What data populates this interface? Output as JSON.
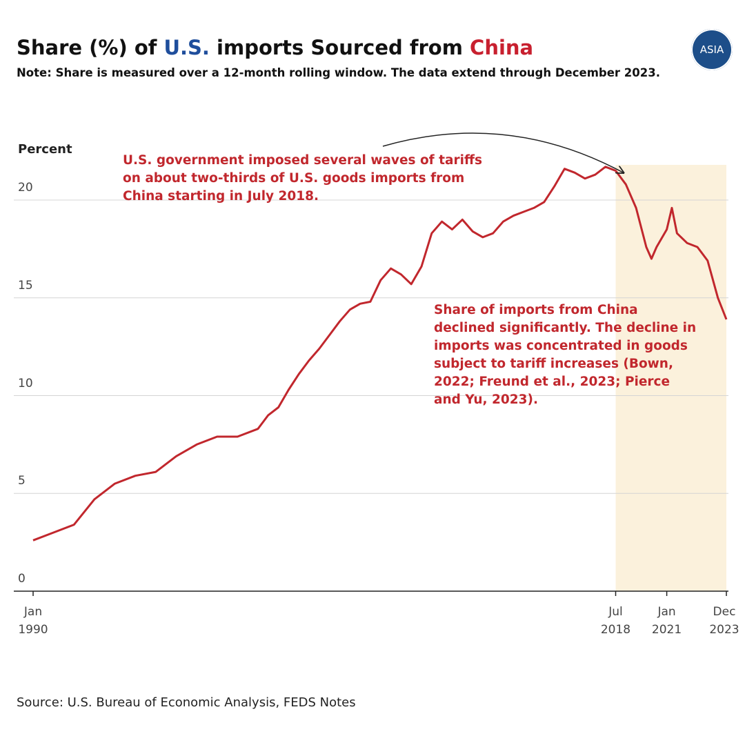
{
  "chart_data": {
    "type": "line",
    "title": [
      "Share (%) of ",
      "U.S.",
      " imports Sourced from ",
      "China"
    ],
    "title_colors": [
      "#111111",
      "#1f4e9c",
      "#111111",
      "#c8202f"
    ],
    "subtitle": "Note: Share is measured over a 12-month rolling window. The data extend through December 2023.",
    "y_label": "Percent",
    "source": "Source: U.S. Bureau of Economic Analysis, FEDS Notes",
    "logo": "ASIA",
    "annotations": [
      "U.S. government imposed several waves of tariffs on about two-thirds of U.S. goods imports from China starting in July 2018.",
      "Share of imports from China declined significantly. The decline in imports was concentrated in goods subject to tariff increases (Bown, 2022; Freund et al., 2023; Pierce and Yu, 2023)."
    ],
    "highlight": {
      "start": "2018-07",
      "end": "2023-12",
      "color": "#fbf1dc"
    },
    "x": [
      "1990-01",
      "1991-01",
      "1992-01",
      "1993-01",
      "1994-01",
      "1995-01",
      "1996-01",
      "1997-01",
      "1998-01",
      "1999-01",
      "2000-01",
      "2001-01",
      "2001-07",
      "2002-01",
      "2002-07",
      "2003-01",
      "2003-07",
      "2004-01",
      "2004-07",
      "2005-01",
      "2005-07",
      "2006-01",
      "2006-07",
      "2007-01",
      "2007-07",
      "2008-01",
      "2008-07",
      "2009-01",
      "2009-07",
      "2010-01",
      "2010-07",
      "2011-01",
      "2011-07",
      "2012-01",
      "2012-07",
      "2013-01",
      "2013-07",
      "2014-01",
      "2014-07",
      "2015-01",
      "2015-07",
      "2016-01",
      "2016-07",
      "2017-01",
      "2017-07",
      "2018-01",
      "2018-07",
      "2019-01",
      "2019-07",
      "2020-01",
      "2020-04",
      "2020-07",
      "2021-01",
      "2021-04",
      "2021-07",
      "2022-01",
      "2022-07",
      "2023-01",
      "2023-07",
      "2023-12"
    ],
    "series": [
      {
        "name": "Share of U.S. imports from China",
        "color": "#c1272d",
        "values": [
          2.6,
          3.0,
          3.4,
          4.7,
          5.5,
          5.9,
          6.1,
          6.9,
          7.5,
          7.9,
          7.9,
          8.3,
          9.0,
          9.4,
          10.3,
          11.1,
          11.8,
          12.4,
          13.1,
          13.8,
          14.4,
          14.7,
          14.8,
          15.9,
          16.5,
          16.2,
          15.7,
          16.6,
          18.3,
          18.9,
          18.5,
          19.0,
          18.4,
          18.1,
          18.3,
          18.9,
          19.2,
          19.4,
          19.6,
          19.9,
          20.7,
          21.6,
          21.4,
          21.1,
          21.3,
          21.7,
          21.5,
          20.8,
          19.6,
          17.6,
          17.0,
          17.6,
          18.5,
          19.6,
          18.3,
          17.8,
          17.6,
          16.9,
          15.0,
          13.9
        ]
      }
    ],
    "xlim": [
      "1990-01",
      "2023-12"
    ],
    "xticks": [
      {
        "value": "1990-01",
        "label": "Jan 1990"
      },
      {
        "value": "2018-07",
        "label": "Jul 2018"
      },
      {
        "value": "2021-01",
        "label": "Jan 2021"
      },
      {
        "value": "2023-12",
        "label": "Dec 2023"
      }
    ],
    "ylim": [
      0,
      21.8
    ],
    "yticks": [
      0,
      5,
      10,
      15,
      20
    ],
    "grid": true
  }
}
